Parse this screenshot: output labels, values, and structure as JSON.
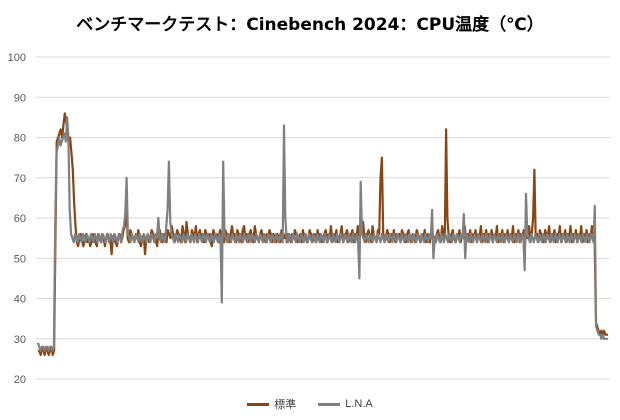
{
  "chart_data": {
    "type": "line",
    "title": "ベンチマークテスト：Cinebench 2024：CPU温度（℃）",
    "xlabel": "",
    "ylabel": "",
    "ylim": [
      20,
      100
    ],
    "yticks": [
      20,
      30,
      40,
      50,
      60,
      70,
      80,
      90,
      100
    ],
    "grid": true,
    "legend_position": "bottom",
    "series": [
      {
        "name": "標準",
        "color": "#8B4513",
        "values": [
          27,
          27,
          26,
          28,
          27,
          26,
          28,
          27,
          26,
          27,
          28,
          26,
          27,
          54,
          79,
          80,
          81,
          82,
          80,
          83,
          86,
          84,
          82,
          78,
          80,
          76,
          72,
          64,
          58,
          54,
          53,
          55,
          56,
          54,
          53,
          55,
          56,
          54,
          55,
          53,
          54,
          56,
          55,
          54,
          53,
          56,
          55,
          54,
          56,
          55,
          53,
          55,
          56,
          54,
          55,
          51,
          55,
          56,
          54,
          53,
          55,
          56,
          54,
          55,
          57,
          58,
          66,
          55,
          54,
          57,
          56,
          55,
          54,
          56,
          55,
          57,
          54,
          53,
          55,
          56,
          51,
          55,
          56,
          54,
          55,
          57,
          56,
          54,
          55,
          53,
          56,
          57,
          55,
          54,
          56,
          55,
          54,
          57,
          56,
          55,
          58,
          56,
          54,
          55,
          57,
          56,
          55,
          54,
          58,
          56,
          54,
          59,
          56,
          55,
          54,
          57,
          56,
          55,
          58,
          54,
          56,
          57,
          55,
          56,
          54,
          57,
          56,
          55,
          56,
          54,
          53,
          57,
          56,
          55,
          56,
          54,
          57,
          56,
          55,
          54,
          57,
          56,
          55,
          54,
          56,
          58,
          55,
          56,
          54,
          57,
          56,
          55,
          54,
          57,
          58,
          55,
          56,
          54,
          56,
          57,
          55,
          54,
          58,
          56,
          55,
          54,
          56,
          57,
          55,
          56,
          54,
          56,
          55,
          57,
          56,
          54,
          56,
          55,
          54,
          56,
          55,
          54,
          57,
          56,
          55,
          56,
          54,
          56,
          55,
          54,
          56,
          55,
          57,
          56,
          54,
          55,
          56,
          54,
          57,
          55,
          56,
          54,
          55,
          57,
          56,
          54,
          55,
          56,
          54,
          57,
          55,
          56,
          54,
          55,
          56,
          57,
          54,
          56,
          55,
          58,
          54,
          56,
          55,
          57,
          54,
          55,
          56,
          58,
          54,
          55,
          56,
          57,
          54,
          55,
          56,
          57,
          54,
          56,
          55,
          58,
          54,
          57,
          56,
          59,
          55,
          54,
          56,
          57,
          55,
          54,
          58,
          56,
          55,
          54,
          57,
          56,
          70,
          75,
          56,
          54,
          55,
          57,
          56,
          54,
          56,
          55,
          57,
          54,
          56,
          55,
          56,
          54,
          57,
          56,
          55,
          54,
          56,
          57,
          55,
          54,
          56,
          55,
          54,
          57,
          56,
          55,
          54,
          56,
          55,
          57,
          54,
          56,
          55,
          54,
          57,
          56,
          55,
          54,
          56,
          57,
          55,
          54,
          58,
          56,
          55,
          82,
          60,
          55,
          54,
          56,
          57,
          55,
          54,
          56,
          55,
          57,
          54,
          56,
          55,
          58,
          54,
          56,
          55,
          57,
          54,
          56,
          55,
          57,
          54,
          56,
          55,
          58,
          54,
          56,
          55,
          57,
          54,
          56,
          55,
          57,
          54,
          56,
          55,
          58,
          54,
          56,
          55,
          57,
          54,
          56,
          55,
          57,
          54,
          56,
          55,
          58,
          54,
          56,
          55,
          57,
          54,
          56,
          55,
          57,
          54,
          56,
          55,
          58,
          54,
          56,
          60,
          72,
          55,
          56,
          54,
          57,
          56,
          55,
          54,
          57,
          56,
          55,
          58,
          54,
          56,
          55,
          57,
          54,
          56,
          55,
          58,
          54,
          56,
          55,
          57,
          54,
          56,
          55,
          58,
          54,
          56,
          55,
          57,
          54,
          56,
          55,
          58,
          54,
          56,
          55,
          57,
          54,
          56,
          55,
          58,
          56,
          55,
          34,
          33,
          32,
          31,
          32,
          31,
          32,
          31,
          31,
          31
        ]
      },
      {
        "name": "L.N.A",
        "color": "#808080",
        "values": [
          29,
          28,
          27,
          28,
          28,
          27,
          28,
          28,
          27,
          28,
          28,
          27,
          28,
          58,
          76,
          78,
          80,
          78,
          79,
          80,
          81,
          79,
          85,
          80,
          62,
          56,
          55,
          54,
          56,
          55,
          54,
          56,
          55,
          54,
          56,
          55,
          54,
          56,
          55,
          54,
          56,
          55,
          54,
          56,
          55,
          54,
          56,
          55,
          54,
          56,
          55,
          54,
          56,
          55,
          54,
          56,
          55,
          54,
          56,
          55,
          54,
          56,
          55,
          54,
          57,
          58,
          61,
          70,
          56,
          55,
          54,
          56,
          55,
          54,
          56,
          55,
          54,
          56,
          55,
          54,
          56,
          55,
          54,
          56,
          55,
          54,
          56,
          55,
          54,
          56,
          55,
          60,
          55,
          54,
          56,
          55,
          54,
          58,
          62,
          74,
          59,
          56,
          55,
          54,
          56,
          55,
          54,
          56,
          55,
          54,
          56,
          55,
          54,
          56,
          55,
          54,
          56,
          55,
          54,
          56,
          55,
          54,
          56,
          55,
          54,
          56,
          55,
          54,
          56,
          55,
          54,
          56,
          55,
          54,
          56,
          55,
          54,
          56,
          55,
          39,
          74,
          56,
          55,
          54,
          56,
          55,
          54,
          56,
          55,
          54,
          56,
          55,
          54,
          56,
          55,
          54,
          56,
          55,
          54,
          56,
          55,
          54,
          56,
          55,
          54,
          56,
          55,
          54,
          56,
          55,
          54,
          56,
          55,
          54,
          56,
          55,
          54,
          56,
          55,
          54,
          56,
          55,
          54,
          56,
          55,
          54,
          83,
          60,
          55,
          54,
          56,
          55,
          54,
          56,
          55,
          54,
          56,
          55,
          54,
          56,
          55,
          54,
          56,
          55,
          54,
          56,
          55,
          54,
          56,
          55,
          54,
          56,
          55,
          54,
          56,
          55,
          54,
          56,
          55,
          54,
          56,
          55,
          54,
          56,
          55,
          54,
          56,
          55,
          54,
          56,
          55,
          54,
          56,
          55,
          54,
          56,
          55,
          54,
          56,
          55,
          54,
          56,
          55,
          45,
          69,
          56,
          55,
          54,
          56,
          55,
          54,
          56,
          55,
          54,
          56,
          55,
          54,
          56,
          55,
          54,
          56,
          55,
          54,
          56,
          55,
          54,
          56,
          55,
          54,
          56,
          55,
          54,
          56,
          55,
          54,
          56,
          55,
          54,
          56,
          55,
          54,
          56,
          55,
          54,
          56,
          55,
          54,
          56,
          55,
          54,
          56,
          55,
          54,
          56,
          55,
          54,
          56,
          55,
          62,
          50,
          55,
          54,
          56,
          55,
          54,
          56,
          55,
          54,
          56,
          55,
          54,
          56,
          55,
          54,
          56,
          55,
          54,
          56,
          55,
          54,
          56,
          55,
          61,
          50,
          56,
          55,
          54,
          56,
          55,
          54,
          56,
          55,
          54,
          56,
          55,
          54,
          56,
          55,
          54,
          56,
          55,
          54,
          56,
          55,
          54,
          56,
          55,
          54,
          56,
          55,
          54,
          56,
          55,
          54,
          56,
          55,
          54,
          56,
          55,
          54,
          56,
          55,
          54,
          56,
          55,
          54,
          56,
          55,
          47,
          66,
          56,
          55,
          54,
          56,
          55,
          54,
          56,
          55,
          54,
          56,
          55,
          54,
          56,
          55,
          54,
          56,
          55,
          54,
          56,
          55,
          54,
          56,
          55,
          54,
          56,
          55,
          54,
          56,
          55,
          54,
          56,
          55,
          54,
          56,
          55,
          54,
          56,
          55,
          54,
          56,
          55,
          54,
          56,
          55,
          54,
          56,
          55,
          54,
          56,
          55,
          54,
          63,
          33,
          32,
          31,
          31,
          30,
          31,
          30,
          30,
          30,
          30
        ]
      }
    ]
  }
}
